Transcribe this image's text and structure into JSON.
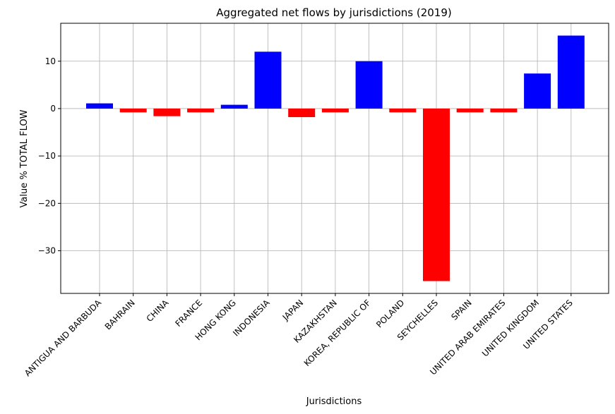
{
  "chart_data": {
    "type": "bar",
    "title": "Aggregated net flows by jurisdictions (2019)",
    "xlabel": "Jurisdictions",
    "ylabel": "Value % TOTAL FLOW",
    "ylim": [
      -39,
      18
    ],
    "yticks": [
      -30,
      -20,
      -10,
      0,
      10
    ],
    "ytick_labels": [
      "−30",
      "−20",
      "−10",
      "0",
      "10"
    ],
    "grid": true,
    "categories": [
      "ANTIGUA AND BARBUDA",
      "BAHRAIN",
      "CHINA",
      "FRANCE",
      "HONG KONG",
      "INDONESIA",
      "JAPAN",
      "KAZAKHSTAN",
      "KOREA, REPUBLIC OF",
      "POLAND",
      "SEYCHELLES",
      "SPAIN",
      "UNITED ARAB EMIRATES",
      "UNITED KINGDOM",
      "UNITED STATES"
    ],
    "values": [
      1.1,
      -0.8,
      -1.6,
      -0.8,
      0.8,
      12.0,
      -1.8,
      -0.8,
      10.0,
      -0.8,
      -36.4,
      -0.8,
      -0.8,
      7.4,
      15.4
    ],
    "colors": {
      "positive": "#0000ff",
      "negative": "#ff0000",
      "grid": "#b0b0b0"
    }
  }
}
